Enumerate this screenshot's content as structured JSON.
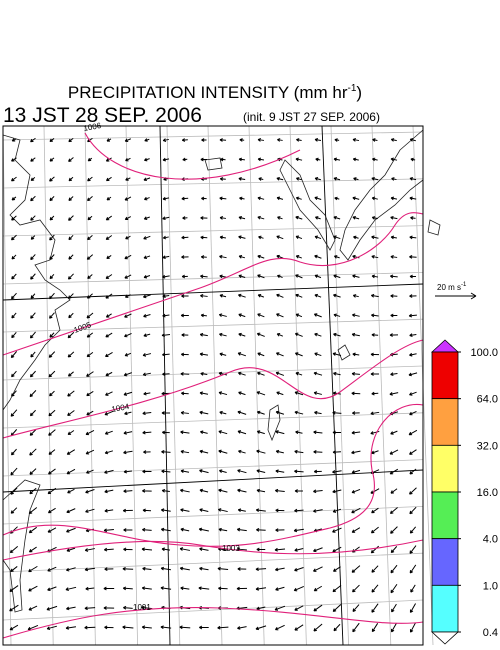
{
  "header": {
    "title": {
      "text": "PRECIPITATION INTENSITY (mm hr",
      "sup": "-1",
      "end": ")"
    },
    "valid_time": "13 JST 28 SEP. 2006",
    "init_time": "(init. 9 JST 27 SEP. 2006)"
  },
  "vector_scale": {
    "text": "20 m s",
    "sup": "-1"
  },
  "isobars": [
    {
      "label": "1006"
    },
    {
      "label": "1005"
    },
    {
      "label": "1004"
    },
    {
      "label": "1003"
    },
    {
      "label": "1001"
    }
  ],
  "colorbar": {
    "levels": [
      {
        "value": 100,
        "label": "100.0"
      },
      {
        "value": 64,
        "label": "64.0"
      },
      {
        "value": 32,
        "label": "32.0"
      },
      {
        "value": 16,
        "label": "16.0"
      },
      {
        "value": 4,
        "label": "4.0"
      },
      {
        "value": 1,
        "label": "1.0"
      },
      {
        "value": 0.4,
        "label": "0.4"
      }
    ],
    "colors": [
      "#ee0000",
      "#ffa040",
      "#ffff66",
      "#55ee55",
      "#6666ff",
      "#55ffff"
    ],
    "over_color": "#cc33ff",
    "under_color": "#ffffff"
  }
}
